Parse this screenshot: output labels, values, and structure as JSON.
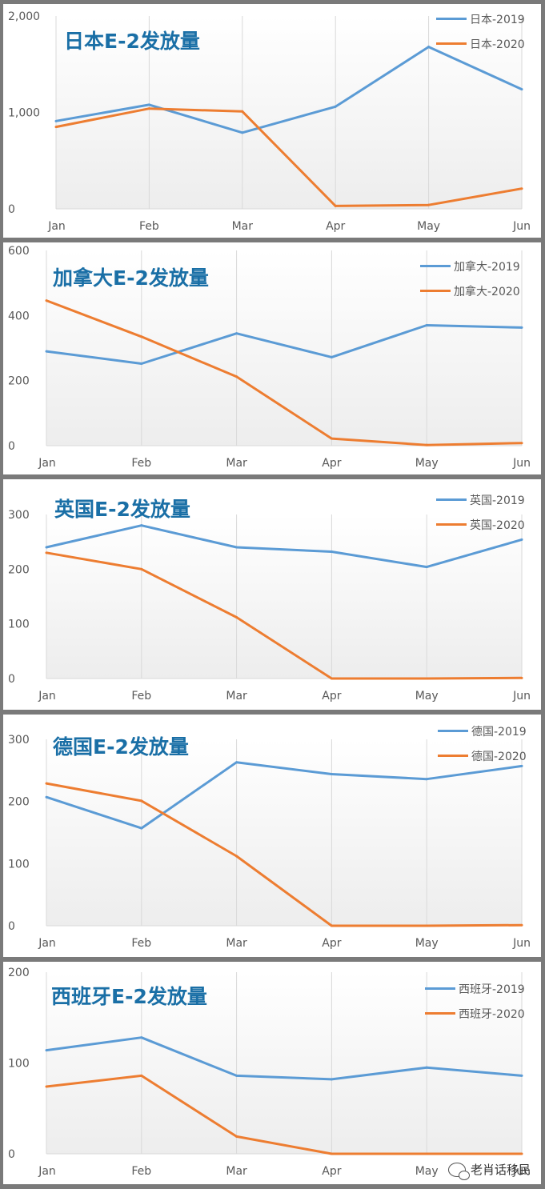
{
  "chart_data": [
    {
      "type": "line",
      "title": "日本E-2发放量",
      "categories": [
        "Jan",
        "Feb",
        "Mar",
        "Apr",
        "May",
        "Jun"
      ],
      "ylim": [
        0,
        2000
      ],
      "yticks": [
        "0",
        "1,000",
        "2,000"
      ],
      "ytick_values": [
        0,
        1000,
        2000
      ],
      "series": [
        {
          "name": "日本-2019",
          "color": "#5b9bd5",
          "values": [
            910,
            1080,
            790,
            1060,
            1680,
            1240
          ]
        },
        {
          "name": "日本-2020",
          "color": "#ed7d31",
          "values": [
            850,
            1040,
            1010,
            30,
            40,
            210
          ]
        }
      ],
      "grid": "vertical",
      "legend": "top-right"
    },
    {
      "type": "line",
      "title": "加拿大E-2发放量",
      "categories": [
        "Jan",
        "Feb",
        "Mar",
        "Apr",
        "May",
        "Jun"
      ],
      "ylim": [
        0,
        600
      ],
      "yticks": [
        "0",
        "200",
        "400",
        "600"
      ],
      "ytick_values": [
        0,
        200,
        400,
        600
      ],
      "series": [
        {
          "name": "加拿大-2019",
          "color": "#5b9bd5",
          "values": [
            290,
            252,
            345,
            272,
            370,
            363
          ]
        },
        {
          "name": "加拿大-2020",
          "color": "#ed7d31",
          "values": [
            446,
            335,
            212,
            22,
            2,
            8
          ]
        }
      ],
      "grid": "vertical",
      "legend": "top-right"
    },
    {
      "type": "line",
      "title": "英国E-2发放量",
      "categories": [
        "Jan",
        "Feb",
        "Mar",
        "Apr",
        "May",
        "Jun"
      ],
      "ylim": [
        0,
        300
      ],
      "yticks": [
        "0",
        "100",
        "200",
        "300"
      ],
      "ytick_values": [
        0,
        100,
        200,
        300
      ],
      "series": [
        {
          "name": "英国-2019",
          "color": "#5b9bd5",
          "values": [
            240,
            280,
            240,
            232,
            204,
            254
          ]
        },
        {
          "name": "英国-2020",
          "color": "#ed7d31",
          "values": [
            230,
            200,
            112,
            0,
            0,
            1
          ]
        }
      ],
      "grid": "vertical",
      "legend": "top-right"
    },
    {
      "type": "line",
      "title": "德国E-2发放量",
      "categories": [
        "Jan",
        "Feb",
        "Mar",
        "Apr",
        "May",
        "Jun"
      ],
      "ylim": [
        0,
        300
      ],
      "yticks": [
        "0",
        "100",
        "200",
        "300"
      ],
      "ytick_values": [
        0,
        100,
        200,
        300
      ],
      "series": [
        {
          "name": "德国-2019",
          "color": "#5b9bd5",
          "values": [
            207,
            157,
            263,
            244,
            236,
            257
          ]
        },
        {
          "name": "德国-2020",
          "color": "#ed7d31",
          "values": [
            229,
            201,
            112,
            0,
            0,
            1
          ]
        }
      ],
      "grid": "vertical",
      "legend": "top-right"
    },
    {
      "type": "line",
      "title": "西班牙E-2发放量",
      "categories": [
        "Jan",
        "Feb",
        "Mar",
        "Apr",
        "May",
        "Jun"
      ],
      "ylim": [
        0,
        200
      ],
      "yticks": [
        "0",
        "100",
        "200"
      ],
      "ytick_values": [
        0,
        100,
        200
      ],
      "series": [
        {
          "name": "西班牙-2019",
          "color": "#5b9bd5",
          "values": [
            114,
            128,
            86,
            82,
            95,
            86
          ]
        },
        {
          "name": "西班牙-2020",
          "color": "#ed7d31",
          "values": [
            74,
            86,
            19,
            0,
            0,
            0
          ]
        }
      ],
      "grid": "vertical",
      "legend": "top-right"
    }
  ],
  "watermark": {
    "icon": "wechat-icon",
    "text": "老肖话移民"
  }
}
